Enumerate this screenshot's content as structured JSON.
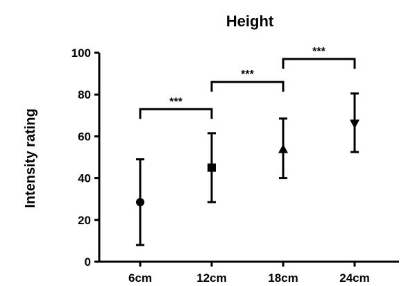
{
  "chart_data": {
    "type": "scatter",
    "title": "Height",
    "xlabel": "",
    "ylabel": "Intensity rating",
    "ylim": [
      0,
      100
    ],
    "yticks": [
      0,
      20,
      40,
      60,
      80,
      100
    ],
    "categories": [
      "6cm",
      "12cm",
      "18cm",
      "24cm"
    ],
    "points": [
      {
        "category": "6cm",
        "mean": 28.5,
        "lower": 8,
        "upper": 49,
        "marker": "circle"
      },
      {
        "category": "12cm",
        "mean": 45,
        "lower": 28.5,
        "upper": 61.5,
        "marker": "square"
      },
      {
        "category": "18cm",
        "mean": 54,
        "lower": 40,
        "upper": 68.5,
        "marker": "triangle-up"
      },
      {
        "category": "24cm",
        "mean": 66,
        "lower": 52.5,
        "upper": 80.5,
        "marker": "triangle-down"
      }
    ],
    "significance": [
      {
        "from": "6cm",
        "to": "12cm",
        "label": "***",
        "y": 73
      },
      {
        "from": "12cm",
        "to": "18cm",
        "label": "***",
        "y": 86
      },
      {
        "from": "18cm",
        "to": "24cm",
        "label": "***",
        "y": 97
      }
    ],
    "colors": {
      "ink": "#000000",
      "background": "#ffffff"
    }
  }
}
